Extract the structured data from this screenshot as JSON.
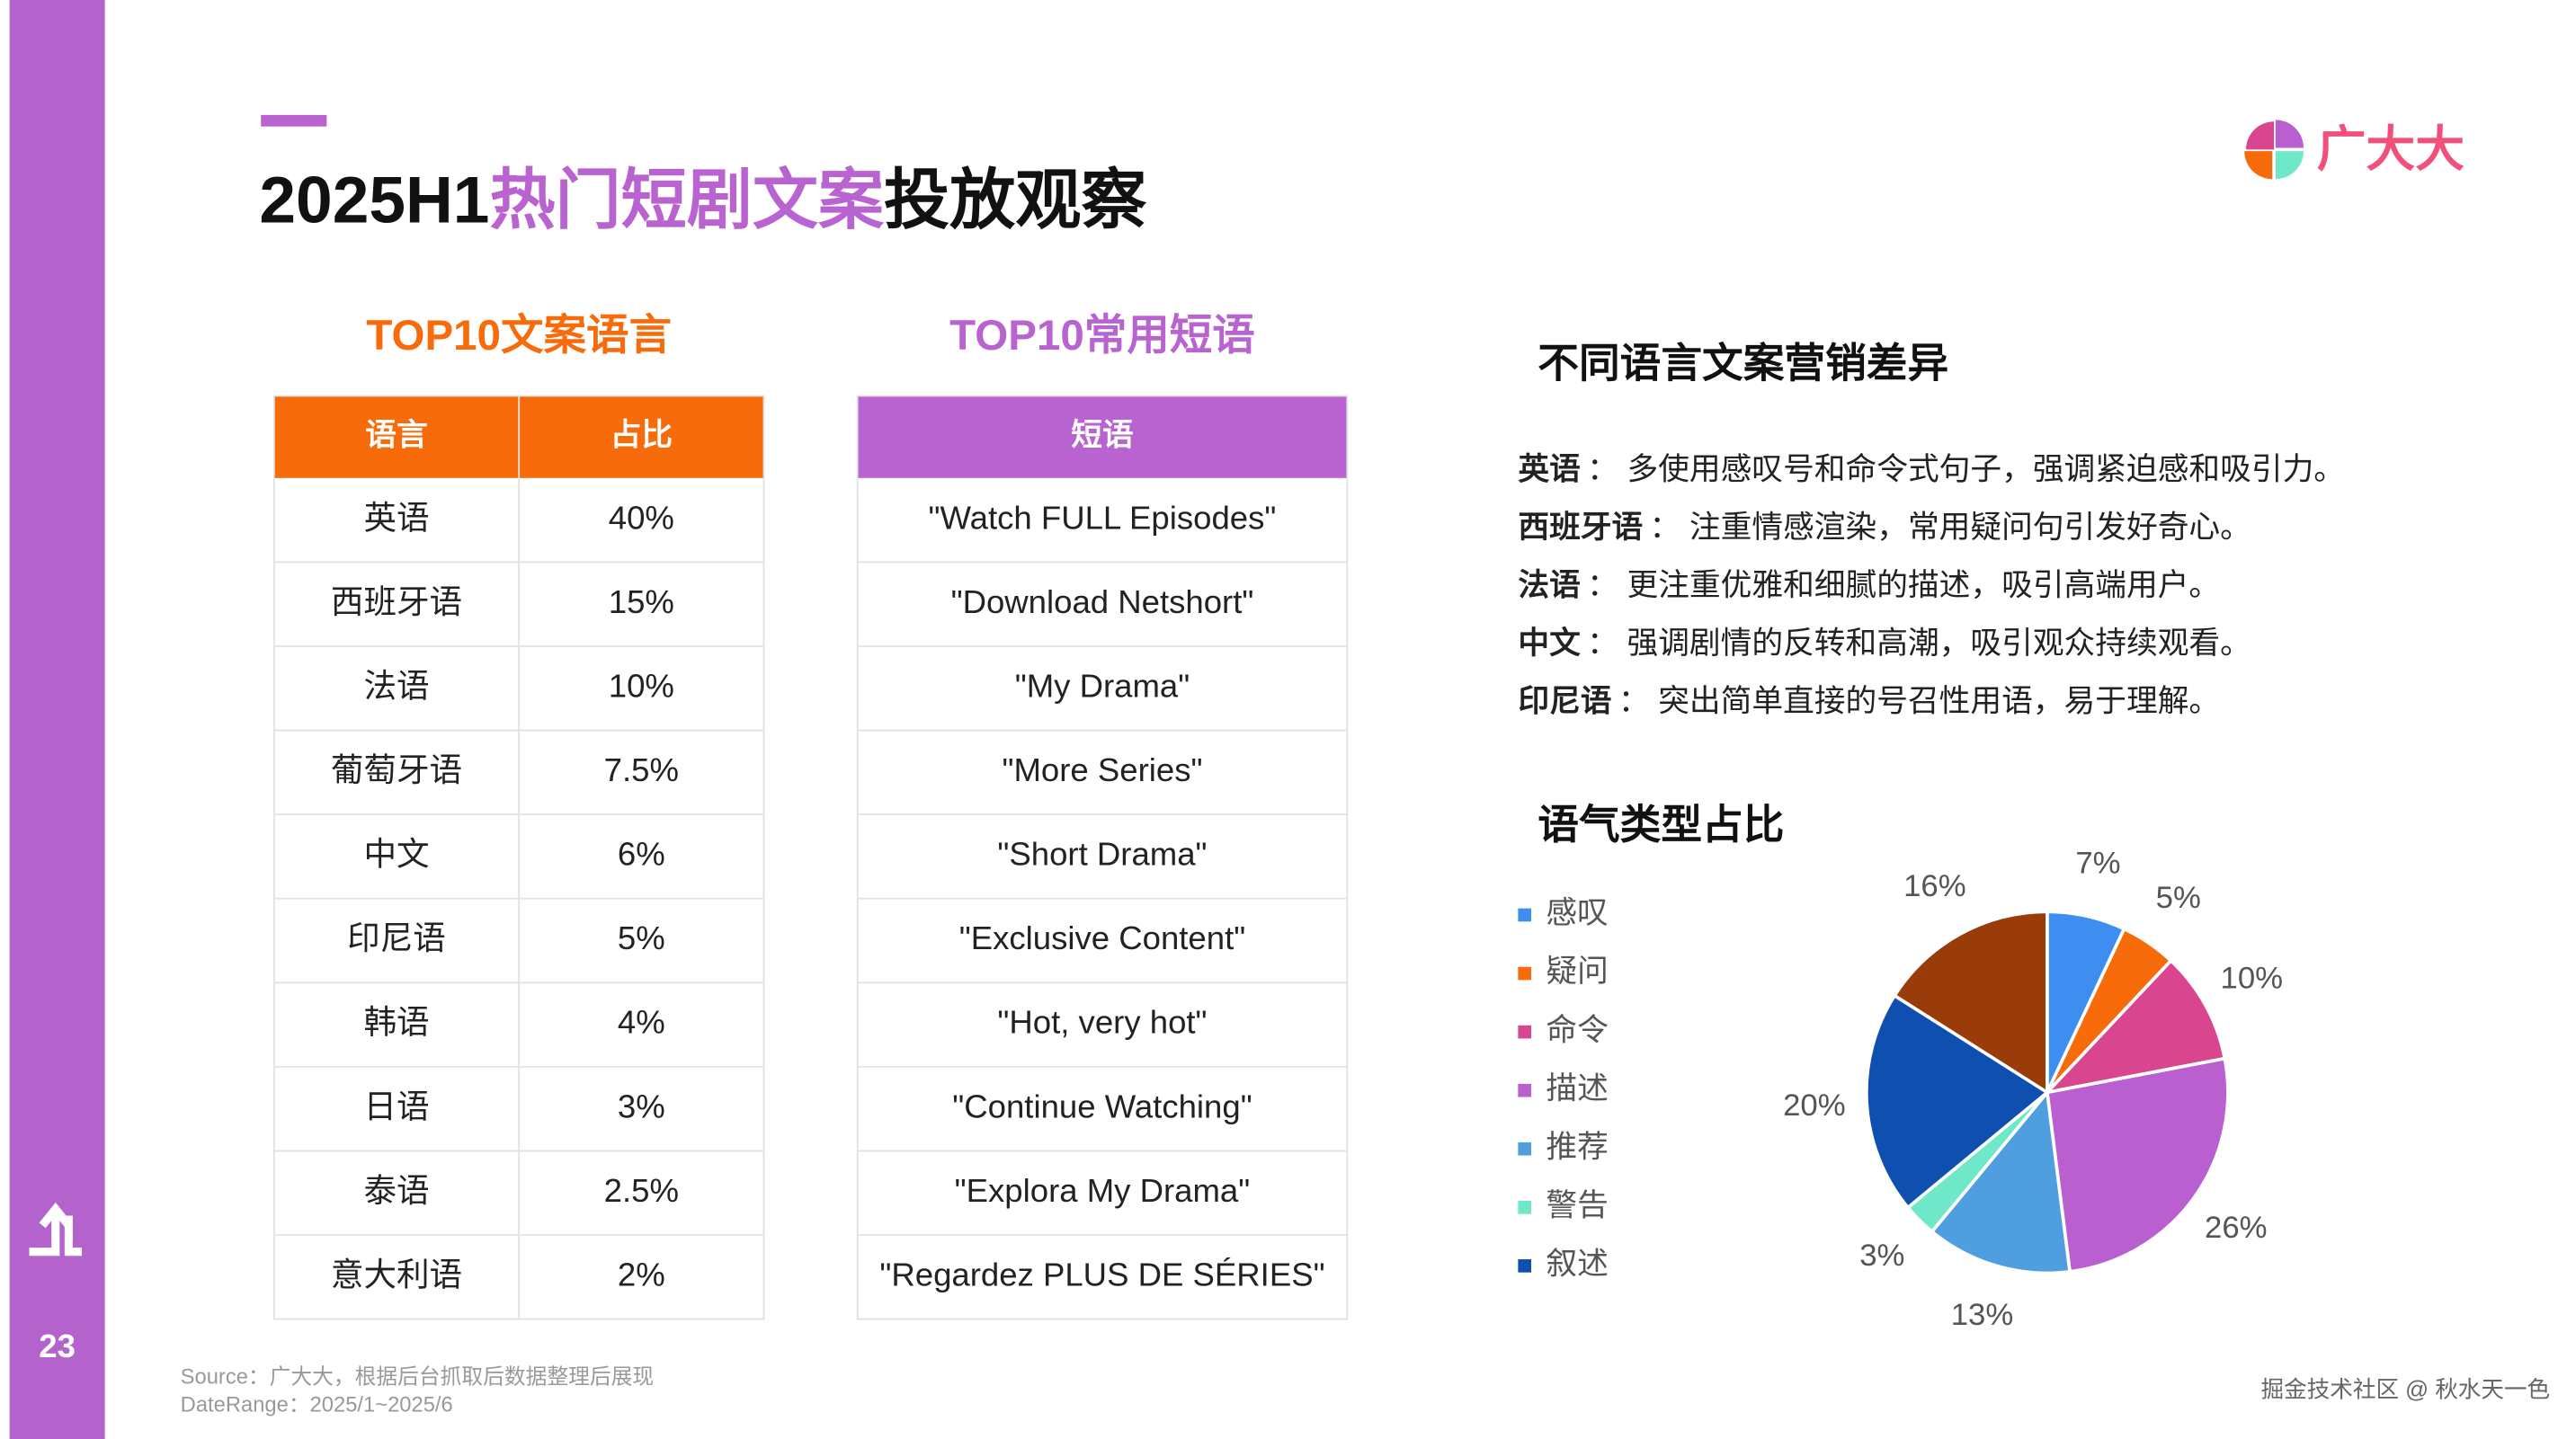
{
  "header": {
    "title_parts": [
      "2025H1",
      "热门短剧文案",
      "投放观察"
    ],
    "logo": "广大大"
  },
  "page_number": "23",
  "tables": [
    {
      "heading": "TOP10文案语言",
      "header": [
        "语言",
        "占比"
      ],
      "rows": [
        [
          "英语",
          "40%"
        ],
        [
          "西班牙语",
          "15%"
        ],
        [
          "法语",
          "10%"
        ],
        [
          "葡萄牙语",
          "7.5%"
        ],
        [
          "中文",
          "6%"
        ],
        [
          "印尼语",
          "5%"
        ],
        [
          "韩语",
          "4%"
        ],
        [
          "日语",
          "3%"
        ],
        [
          "泰语",
          "2.5%"
        ],
        [
          "意大利语",
          "2%"
        ]
      ]
    },
    {
      "heading": "TOP10常用短语",
      "header": [
        "短语"
      ],
      "rows": [
        [
          "\"Watch FULL Episodes\""
        ],
        [
          "\"Download Netshort\""
        ],
        [
          "\"My Drama\""
        ],
        [
          "\"More Series\""
        ],
        [
          "\"Short Drama\""
        ],
        [
          "\"Exclusive Content\""
        ],
        [
          "\"Hot, very hot\""
        ],
        [
          "\"Continue Watching\""
        ],
        [
          "\"Explora My Drama\""
        ],
        [
          "\"Regardez PLUS DE SÉRIES\""
        ]
      ]
    }
  ],
  "notes": {
    "heading": "不同语言文案营销差异",
    "items": [
      {
        "label": "英语",
        "text": "：  多使用感叹号和命令式句子，强调紧迫感和吸引力。"
      },
      {
        "label": "西班牙语",
        "text": "：  注重情感渲染，常用疑问句引发好奇心。"
      },
      {
        "label": "法语",
        "text": "：  更注重优雅和细腻的描述，吸引高端用户。"
      },
      {
        "label": "中文",
        "text": "：  强调剧情的反转和高潮，吸引观众持续观看。"
      },
      {
        "label": "印尼语",
        "text": "：  突出简单直接的号召性用语，易于理解。"
      }
    ]
  },
  "chart_data": {
    "type": "pie",
    "title": "语气类型占比",
    "categories": [
      "感叹",
      "疑问",
      "命令",
      "描述",
      "推荐",
      "警告",
      "叙述",
      null
    ],
    "values": [
      7,
      5,
      10,
      26,
      13,
      3,
      20,
      16
    ],
    "value_labels": [
      "7%",
      "5%",
      "10%",
      "26%",
      "13%",
      "3%",
      "20%",
      "16%"
    ],
    "colors": [
      "#3d8ef0",
      "#f76b0a",
      "#d9458f",
      "#b95fd0",
      "#4f9ee0",
      "#6ee8c8",
      "#0e4fb0",
      "#9a3b0a"
    ]
  },
  "footer": {
    "source": "Source：广大大，根据后台抓取后数据整理后展现",
    "date_range": "DateRange：2025/1~2025/6",
    "watermark": "掘金技术社区 @ 秋水天一色"
  }
}
